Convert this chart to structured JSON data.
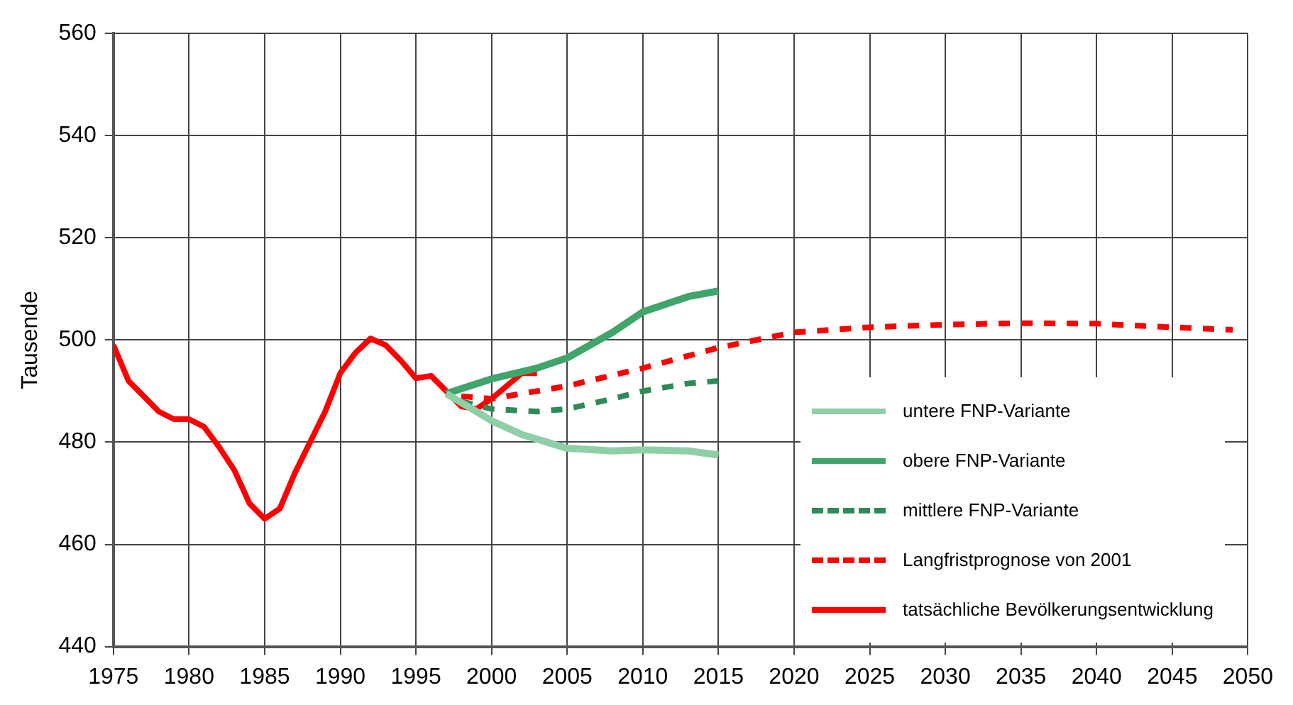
{
  "chart_data": {
    "type": "line",
    "ylabel": "Tausende",
    "xlim": [
      1975,
      2050
    ],
    "xticks": [
      1975,
      1980,
      1985,
      1990,
      1995,
      2000,
      2005,
      2010,
      2015,
      2020,
      2025,
      2030,
      2035,
      2040,
      2045,
      2050
    ],
    "ylim": [
      440,
      560
    ],
    "yticks": [
      440,
      460,
      480,
      500,
      520,
      540,
      560
    ],
    "grid": true,
    "legend": "bottom right",
    "marker": "none",
    "series": [
      {
        "name": "untere FNP-Variante",
        "color": "#8fcfa8",
        "line_style": "solid",
        "x": [
          1997,
          1999,
          2000,
          2002,
          2005,
          2008,
          2010,
          2013,
          2015
        ],
        "values": [
          489.5,
          486,
          484.2,
          481.5,
          478.8,
          478.3,
          478.5,
          478.3,
          477.5
        ]
      },
      {
        "name": "obere FNP-Variante",
        "color": "#3fa56a",
        "line_style": "solid",
        "x": [
          1997,
          2000,
          2003,
          2005,
          2008,
          2010,
          2013,
          2015
        ],
        "values": [
          489.5,
          492.4,
          494.5,
          496.5,
          501.5,
          505.5,
          508.5,
          509.6
        ]
      },
      {
        "name": "mittlere FNP-Variante",
        "color": "#2e8b57",
        "line_style": "dashed",
        "x": [
          1998,
          2000,
          2003,
          2005,
          2008,
          2010,
          2013,
          2015
        ],
        "values": [
          488,
          486.5,
          486,
          486.5,
          488.5,
          490,
          491.5,
          492
        ]
      },
      {
        "name": "Langfristprognose von 2001",
        "color": "#ff0000",
        "line_style": "dashed",
        "x": [
          1998,
          2000,
          2005,
          2010,
          2015,
          2020,
          2025,
          2030,
          2035,
          2040,
          2045,
          2049
        ],
        "values": [
          489,
          488.5,
          491,
          494.5,
          498.5,
          501.5,
          502.5,
          503,
          503.3,
          503.2,
          502.5,
          502
        ]
      },
      {
        "name": "tatsächliche Bevölkerungsentwicklung",
        "color": "#ff0000",
        "line_style": "solid",
        "x": [
          1975,
          1976,
          1977,
          1978,
          1979,
          1980,
          1981,
          1982,
          1983,
          1984,
          1985,
          1986,
          1987,
          1988,
          1989,
          1990,
          1991,
          1992,
          1993,
          1994,
          1995,
          1996,
          1997,
          1998,
          1999,
          2000,
          2001,
          2002,
          2003
        ],
        "values": [
          499,
          492,
          489,
          486,
          484.5,
          484.5,
          483,
          479,
          474.5,
          468,
          465,
          467,
          474,
          480,
          486,
          493.5,
          497.5,
          500.3,
          499,
          496,
          492.5,
          493,
          490,
          487,
          486.5,
          488.5,
          491,
          493.5,
          493.5
        ]
      }
    ]
  }
}
